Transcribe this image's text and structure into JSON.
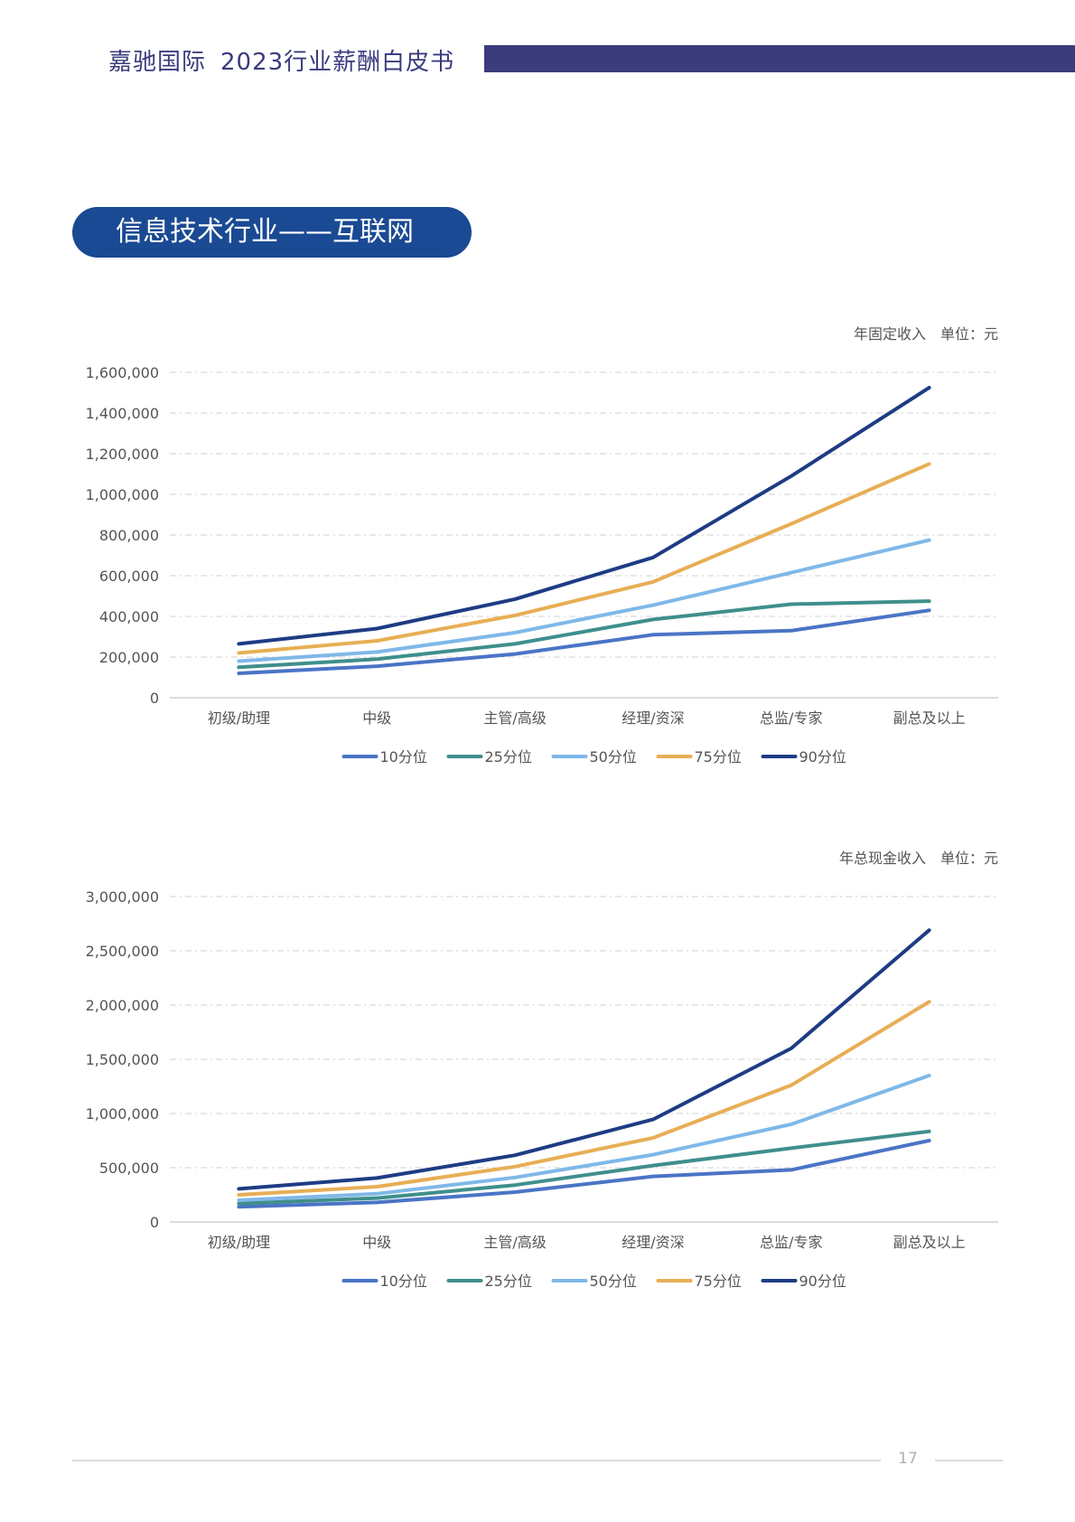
{
  "header": {
    "brand": "嘉驰国际",
    "title": "2023行业薪酬白皮书"
  },
  "section": {
    "title": "信息技术行业——互联网"
  },
  "page": {
    "number": "17"
  },
  "colors": {
    "header_bar": "#3c3c7c",
    "pill": "#1a4a93",
    "p10": "#4a74c6",
    "p25": "#3f8f8c",
    "p50": "#7fb8e8",
    "p75": "#e8ae55",
    "p90": "#1e3c84"
  },
  "chart_data": [
    {
      "type": "line",
      "unit_label": "年固定收入　单位：元",
      "categories": [
        "初级/助理",
        "中级",
        "主管/高级",
        "经理/资深",
        "总监/专家",
        "副总及以上"
      ],
      "ylim": [
        0,
        1600000
      ],
      "yticks": [
        0,
        200000,
        400000,
        600000,
        800000,
        1000000,
        1200000,
        1400000,
        1600000
      ],
      "ytick_labels": [
        "0",
        "200,000",
        "400,000",
        "600,000",
        "800,000",
        "1,000,000",
        "1,200,000",
        "1,400,000",
        "1,600,000"
      ],
      "grid": true,
      "legend": "bottom-center",
      "series": [
        {
          "name": "10分位",
          "color": "#4a74c6",
          "values": [
            120000,
            155000,
            215000,
            310000,
            330000,
            430000
          ]
        },
        {
          "name": "25分位",
          "color": "#3f8f8c",
          "values": [
            150000,
            190000,
            265000,
            385000,
            460000,
            475000
          ]
        },
        {
          "name": "50分位",
          "color": "#7fb8e8",
          "values": [
            180000,
            225000,
            320000,
            455000,
            615000,
            775000
          ]
        },
        {
          "name": "75分位",
          "color": "#e8ae55",
          "values": [
            220000,
            280000,
            405000,
            570000,
            855000,
            1150000
          ]
        },
        {
          "name": "90分位",
          "color": "#1e3c84",
          "values": [
            265000,
            340000,
            485000,
            690000,
            1090000,
            1525000
          ]
        }
      ]
    },
    {
      "type": "line",
      "unit_label": "年总现金收入　单位：元",
      "categories": [
        "初级/助理",
        "中级",
        "主管/高级",
        "经理/资深",
        "总监/专家",
        "副总及以上"
      ],
      "ylim": [
        0,
        3000000
      ],
      "yticks": [
        0,
        500000,
        1000000,
        1500000,
        2000000,
        2500000,
        3000000
      ],
      "ytick_labels": [
        "0",
        "500,000",
        "1,000,000",
        "1,500,000",
        "2,000,000",
        "2,500,000",
        "3,000,000"
      ],
      "grid": true,
      "legend": "bottom-center",
      "series": [
        {
          "name": "10分位",
          "color": "#4a74c6",
          "values": [
            140000,
            180000,
            275000,
            420000,
            480000,
            750000
          ]
        },
        {
          "name": "25分位",
          "color": "#3f8f8c",
          "values": [
            170000,
            220000,
            340000,
            520000,
            680000,
            835000
          ]
        },
        {
          "name": "50分位",
          "color": "#7fb8e8",
          "values": [
            200000,
            260000,
            410000,
            620000,
            900000,
            1350000
          ]
        },
        {
          "name": "75分位",
          "color": "#e8ae55",
          "values": [
            250000,
            325000,
            510000,
            775000,
            1260000,
            2030000
          ]
        },
        {
          "name": "90分位",
          "color": "#1e3c84",
          "values": [
            305000,
            405000,
            615000,
            945000,
            1600000,
            2690000
          ]
        }
      ]
    }
  ]
}
